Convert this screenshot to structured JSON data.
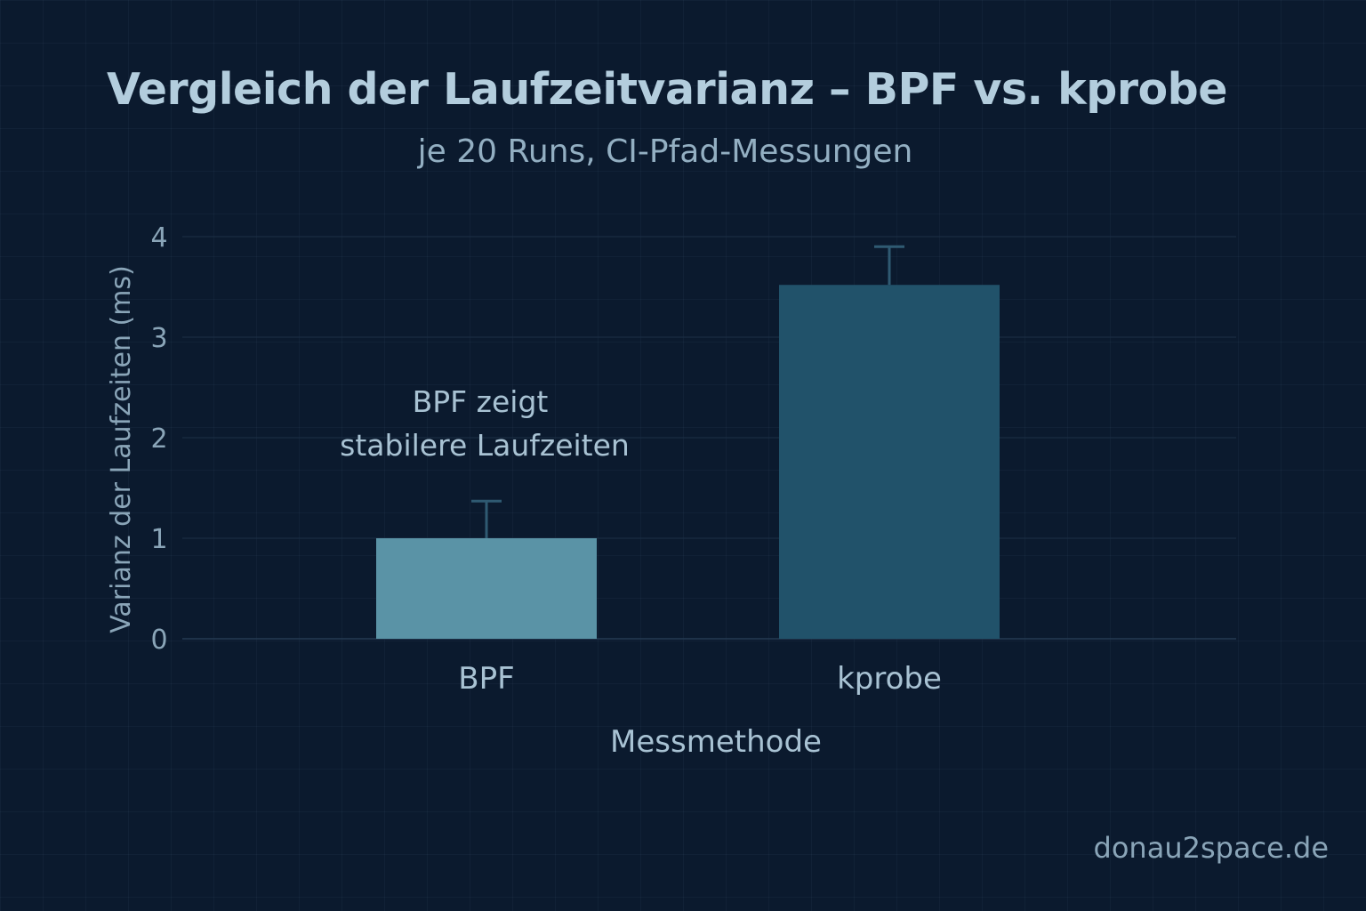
{
  "chart_data": {
    "type": "bar",
    "title": "Vergleich der Laufzeitvarianz – BPF vs. kprobe",
    "subtitle": "je 20 Runs, CI-Pfad-Messungen",
    "xlabel": "Messmethode",
    "ylabel": "Varianz der Laufzeiten (ms)",
    "categories": [
      "BPF",
      "kprobe"
    ],
    "values": [
      1.0,
      3.52
    ],
    "error_upper": [
      1.37,
      3.9
    ],
    "ylim": [
      0,
      4
    ],
    "yticks": [
      "0",
      "1",
      "2",
      "3",
      "4"
    ],
    "grid": true,
    "annotation": {
      "line1": "BPF zeigt",
      "line2": "stabilere Laufzeiten"
    },
    "colors": {
      "background": "#0b1a2e",
      "bar_bpf": "#5a93a6",
      "bar_kprobe": "#21526a",
      "text": "#a8c2d3",
      "grid": "#1c3046",
      "error_bar": "#2f5a72"
    }
  },
  "footer": {
    "watermark": "donau2space.de"
  }
}
